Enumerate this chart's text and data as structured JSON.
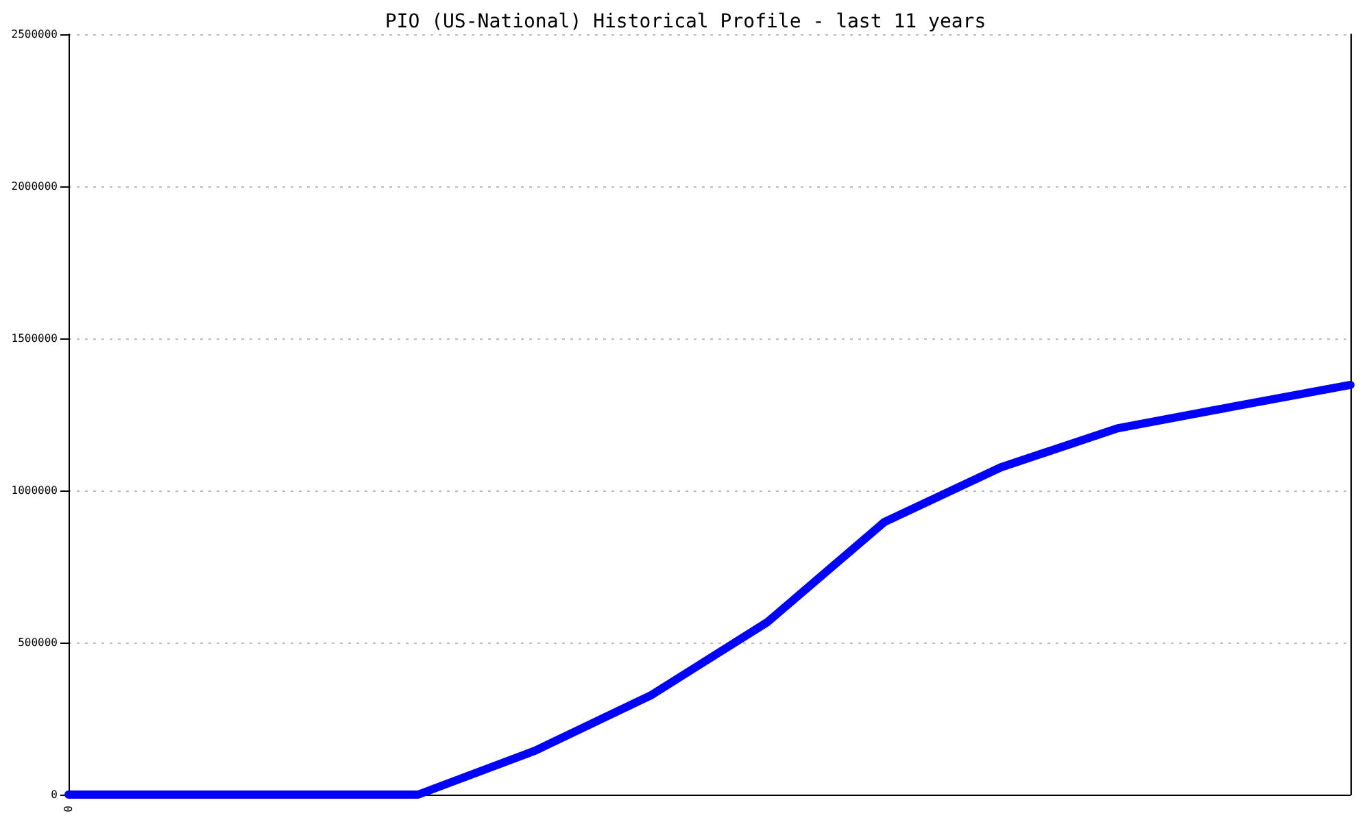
{
  "chart_data": {
    "type": "line",
    "title": "PIO (US-National) Historical Profile - last 11 years",
    "categories": [
      "0",
      null,
      null,
      null,
      null,
      null,
      null,
      null,
      null,
      null,
      null,
      null
    ],
    "series": [
      {
        "color": "#0000ff",
        "values": [
          0,
          0,
          0,
          0,
          144000,
          327000,
          568000,
          896000,
          1076000,
          1204000,
          1276000,
          1347000
        ]
      }
    ],
    "ylim": [
      0,
      2500000
    ],
    "yticks": [
      0,
      500000,
      1000000,
      1500000,
      2000000,
      2500000
    ],
    "grid": "y",
    "marker": "none",
    "line_style": "solid"
  }
}
